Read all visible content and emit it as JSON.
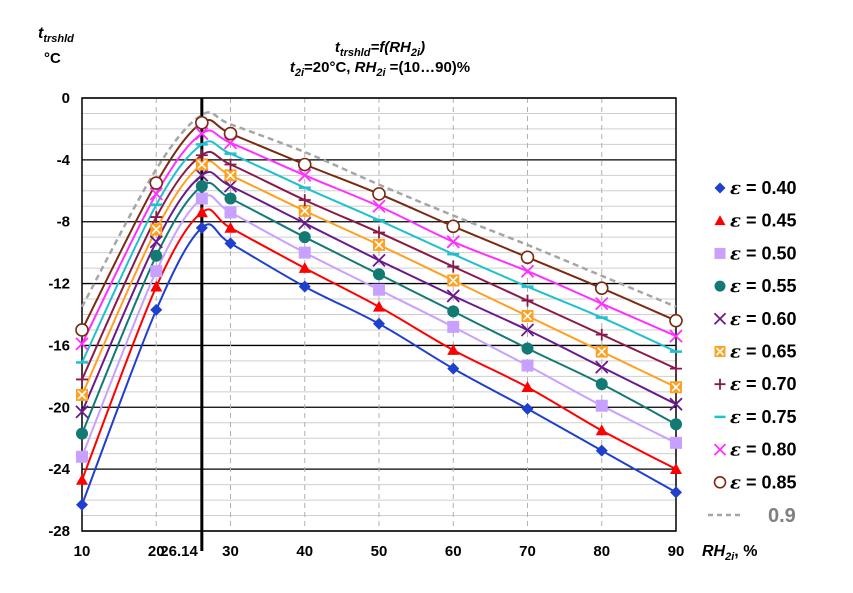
{
  "chart_data": {
    "type": "scatter",
    "title_line1": "t_trshld=f(RH_2i)",
    "title_line2": "t_2i=20°C, RH_2i=(10…90)%",
    "ylabel_symbol": "t",
    "ylabel_sub": "trshld",
    "ylabel_unit": "°C",
    "xlabel_main": "RH",
    "xlabel_sub": "2i",
    "xlabel_tail": ", %",
    "xlim": [
      10,
      90
    ],
    "ylim": [
      -28,
      0
    ],
    "xticks": [
      10,
      20,
      30,
      40,
      50,
      60,
      70,
      80,
      90
    ],
    "yticks": [
      0,
      -4,
      -8,
      -12,
      -16,
      -20,
      -24,
      -28
    ],
    "grid": true,
    "vline": {
      "x": 26.14,
      "label": "26.14"
    },
    "x": [
      10,
      20,
      26.14,
      30,
      40,
      50,
      60,
      70,
      80,
      90
    ],
    "series": [
      {
        "name": "ε = 0.40",
        "color": "#1f3fcf",
        "marker": "diamond",
        "values": [
          -26.3,
          -13.7,
          -8.4,
          -9.4,
          -12.2,
          -14.6,
          -17.5,
          -20.1,
          -22.8,
          -25.5
        ]
      },
      {
        "name": "ε = 0.45",
        "color": "#ff0000",
        "marker": "triangle",
        "values": [
          -24.7,
          -12.2,
          -7.4,
          -8.4,
          -11.0,
          -13.5,
          -16.3,
          -18.7,
          -21.5,
          -24.0
        ]
      },
      {
        "name": "ε = 0.50",
        "color": "#c8a0ff",
        "marker": "square",
        "values": [
          -23.2,
          -11.2,
          -6.5,
          -7.4,
          -10.0,
          -12.4,
          -14.8,
          -17.3,
          -19.9,
          -22.3
        ]
      },
      {
        "name": "ε = 0.55",
        "color": "#127a73",
        "marker": "circle",
        "values": [
          -21.7,
          -10.2,
          -5.7,
          -6.5,
          -9.0,
          -11.4,
          -13.8,
          -16.2,
          -18.5,
          -21.1
        ]
      },
      {
        "name": "ε = 0.60",
        "color": "#6a1a8a",
        "marker": "x",
        "values": [
          -20.3,
          -9.3,
          -5.0,
          -5.7,
          -8.1,
          -10.5,
          -12.8,
          -15.0,
          -17.4,
          -19.8
        ]
      },
      {
        "name": "ε = 0.65",
        "color": "#ffa020",
        "marker": "xsquare",
        "values": [
          -19.2,
          -8.5,
          -4.3,
          -5.0,
          -7.3,
          -9.5,
          -11.8,
          -14.1,
          -16.4,
          -18.7
        ]
      },
      {
        "name": "ε = 0.70",
        "color": "#8a1a4a",
        "marker": "plus",
        "values": [
          -18.2,
          -7.7,
          -3.7,
          -4.3,
          -6.6,
          -8.7,
          -10.9,
          -13.1,
          -15.3,
          -17.5
        ]
      },
      {
        "name": "ε = 0.75",
        "color": "#20c0d0",
        "marker": "dash",
        "values": [
          -17.1,
          -6.9,
          -3.0,
          -3.6,
          -5.8,
          -7.9,
          -10.1,
          -12.2,
          -14.2,
          -16.4
        ]
      },
      {
        "name": "ε = 0.80",
        "color": "#ff30ff",
        "marker": "x",
        "values": [
          -15.9,
          -6.2,
          -2.3,
          -2.9,
          -5.0,
          -7.0,
          -9.3,
          -11.2,
          -13.3,
          -15.4
        ]
      },
      {
        "name": "ε = 0.85",
        "color": "#7a2a10",
        "marker": "opencircle",
        "values": [
          -15.0,
          -5.5,
          -1.6,
          -2.3,
          -4.3,
          -6.2,
          -8.3,
          -10.3,
          -12.3,
          -14.4
        ]
      },
      {
        "name": "0.9",
        "color": "#a6a6a6",
        "marker": "none",
        "dashed": true,
        "values": [
          -13.5,
          -4.6,
          -1.1,
          -1.7,
          -3.5,
          -5.6,
          -7.6,
          -9.5,
          -11.5,
          -13.5
        ]
      }
    ]
  }
}
